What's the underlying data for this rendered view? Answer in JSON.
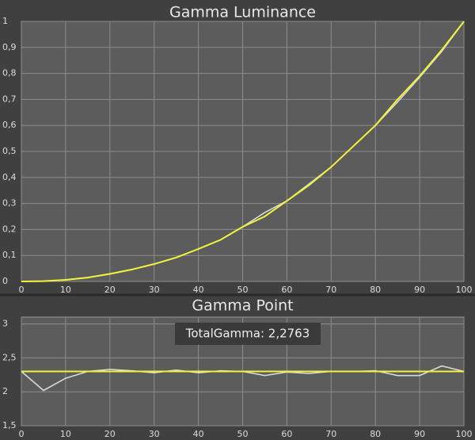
{
  "chart_data": [
    {
      "type": "line",
      "title": "Gamma Luminance",
      "x": [
        0,
        5,
        10,
        15,
        20,
        25,
        30,
        35,
        40,
        45,
        50,
        55,
        60,
        65,
        70,
        75,
        80,
        85,
        90,
        95,
        100
      ],
      "series": [
        {
          "color": "#d8d8d8",
          "values": [
            0,
            0.001,
            0.006,
            0.015,
            0.029,
            0.046,
            0.067,
            0.092,
            0.125,
            0.16,
            0.21,
            0.265,
            0.31,
            0.375,
            0.44,
            0.52,
            0.6,
            0.69,
            0.785,
            0.885,
            1
          ]
        },
        {
          "color": "#f2f23c",
          "values": [
            0,
            0.001,
            0.006,
            0.015,
            0.029,
            0.046,
            0.067,
            0.092,
            0.125,
            0.16,
            0.21,
            0.25,
            0.31,
            0.37,
            0.44,
            0.52,
            0.6,
            0.7,
            0.79,
            0.89,
            1
          ]
        }
      ],
      "xlim": [
        0,
        100
      ],
      "xticks": [
        0,
        10,
        20,
        30,
        40,
        50,
        60,
        70,
        80,
        90,
        100
      ],
      "ylim": [
        0,
        1
      ],
      "yticks": [
        0,
        {
          "value": 0.1,
          "label": "0,1"
        },
        {
          "value": 0.2,
          "label": "0,2"
        },
        {
          "value": 0.3,
          "label": "0,3"
        },
        {
          "value": 0.4,
          "label": "0,4"
        },
        {
          "value": 0.5,
          "label": "0,5"
        },
        {
          "value": 0.6,
          "label": "0,6"
        },
        {
          "value": 0.7,
          "label": "0,7"
        },
        {
          "value": 0.8,
          "label": "0,8"
        },
        {
          "value": 0.9,
          "label": "0,9"
        },
        1
      ],
      "grid": true
    },
    {
      "type": "line",
      "title": "Gamma Point",
      "annotations": [
        "TotalGamma: 2,2763"
      ],
      "x": [
        0,
        5,
        10,
        15,
        20,
        25,
        30,
        35,
        40,
        45,
        50,
        55,
        60,
        65,
        70,
        75,
        80,
        85,
        90,
        95,
        100
      ],
      "series": [
        {
          "color": "#d8d8d8",
          "values": [
            2.3,
            2.02,
            2.2,
            2.3,
            2.33,
            2.31,
            2.28,
            2.32,
            2.28,
            2.31,
            2.3,
            2.24,
            2.29,
            2.27,
            2.3,
            2.3,
            2.31,
            2.24,
            2.24,
            2.38,
            2.3
          ]
        },
        {
          "color": "#f2f23c",
          "values": [
            2.3,
            2.3,
            2.3,
            2.3,
            2.3,
            2.3,
            2.3,
            2.3,
            2.3,
            2.3,
            2.3,
            2.3,
            2.3,
            2.3,
            2.3,
            2.3,
            2.3,
            2.3,
            2.3,
            2.3,
            2.3
          ]
        }
      ],
      "xlim": [
        0,
        100
      ],
      "xticks": [
        0,
        10,
        20,
        30,
        40,
        50,
        60,
        70,
        80,
        90,
        100
      ],
      "ylim": [
        1.5,
        3.1
      ],
      "yticks": [
        {
          "value": 1.5,
          "label": "1,5"
        },
        2,
        {
          "value": 2.5,
          "label": "2,5"
        },
        3
      ],
      "grid": true
    }
  ]
}
